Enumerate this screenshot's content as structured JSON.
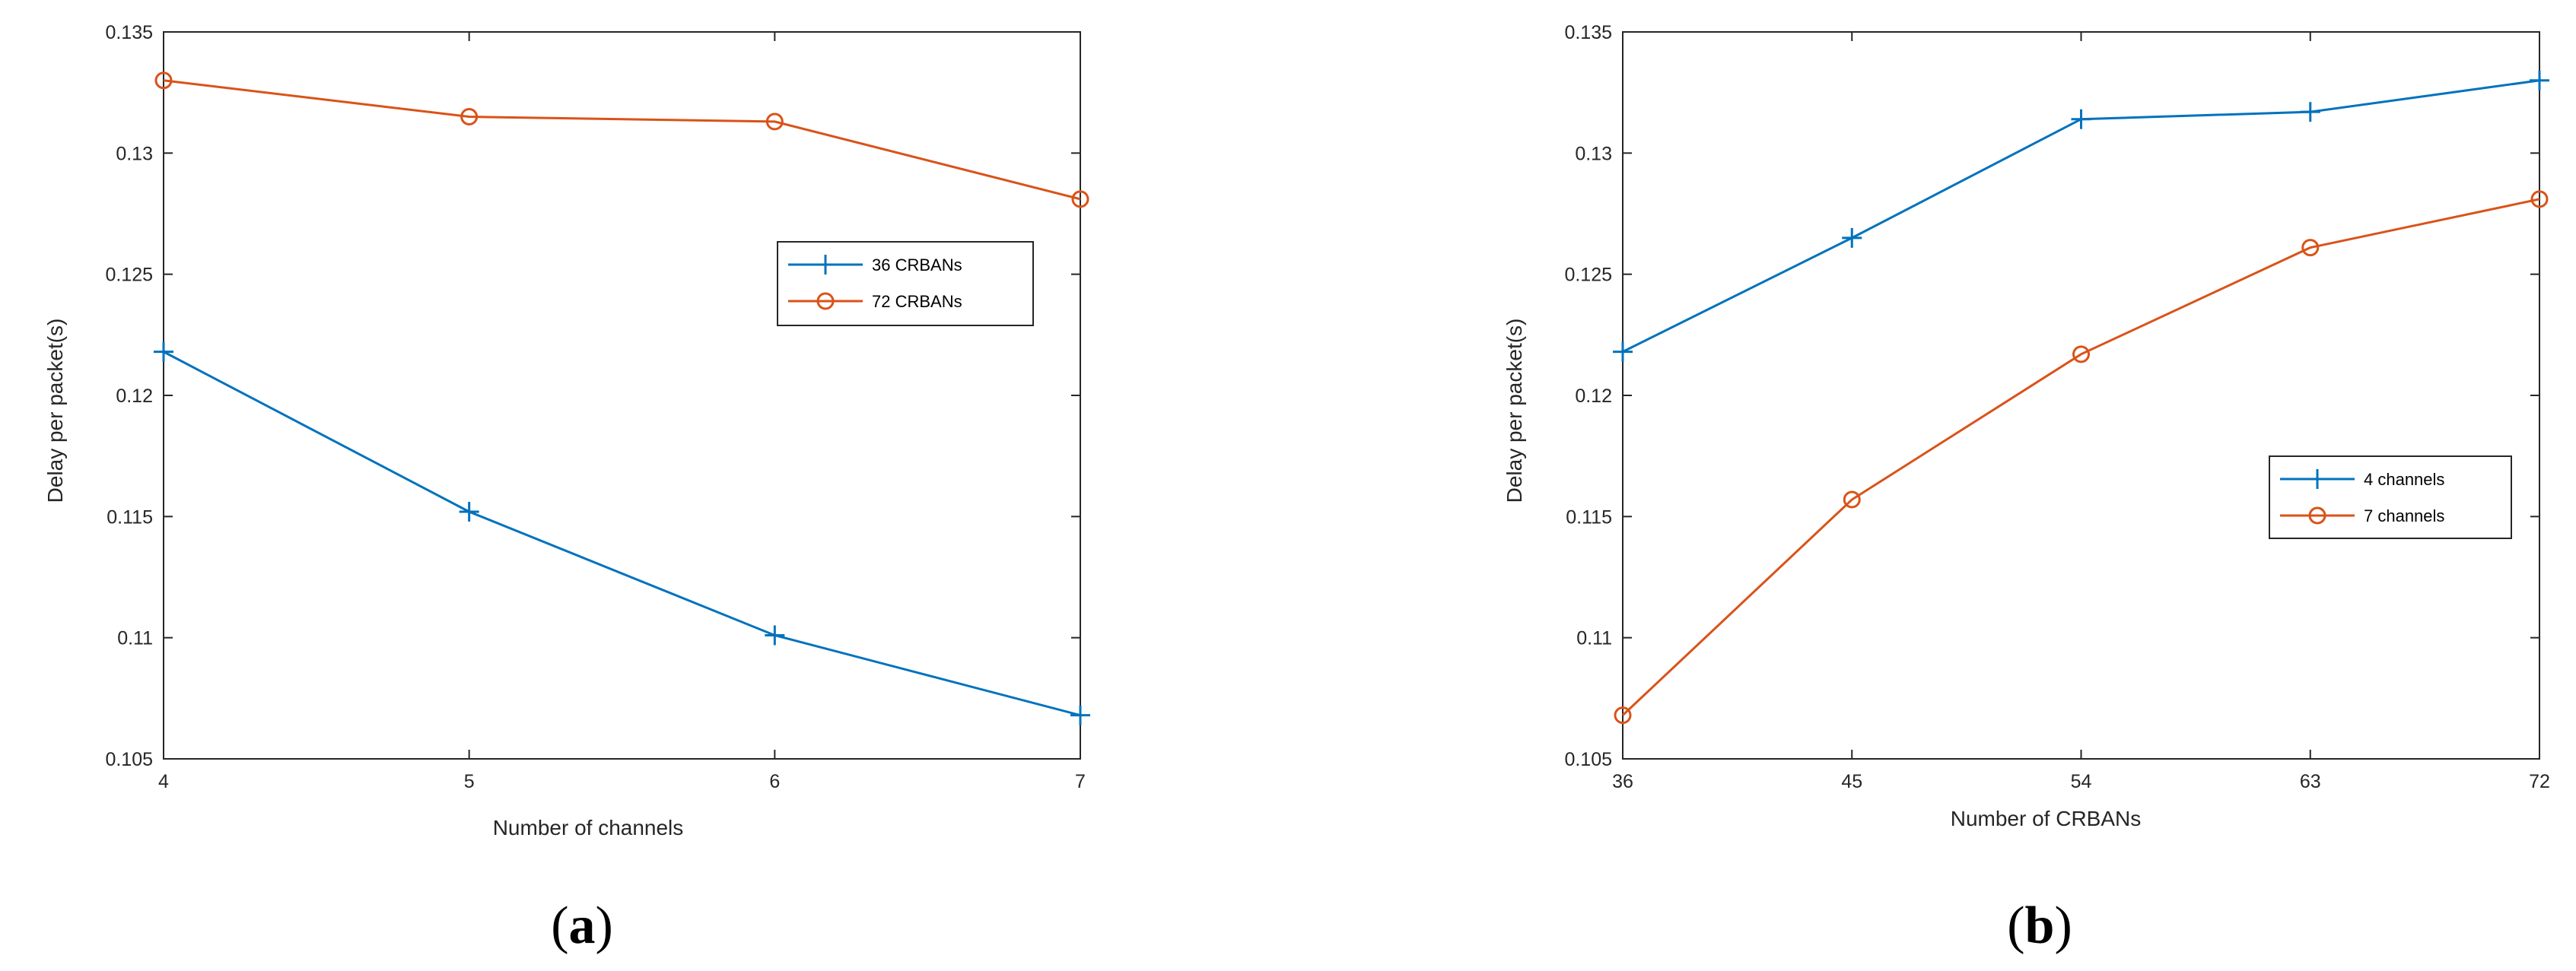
{
  "chart_data": [
    {
      "type": "line",
      "caption_letter": "a",
      "xlabel": "Number of channels",
      "ylabel": "Delay per packet(s)",
      "x": [
        4,
        5,
        6,
        7
      ],
      "xlim": [
        4,
        7
      ],
      "ylim": [
        0.105,
        0.135
      ],
      "xticks": [
        "4",
        "5",
        "6",
        "7"
      ],
      "yticks": [
        "0.105",
        "0.11",
        "0.115",
        "0.12",
        "0.125",
        "0.13",
        "0.135"
      ],
      "grid": false,
      "legend_position": "right-center",
      "series": [
        {
          "name": "36 CRBANs",
          "marker": "plus",
          "color": "#0072BD",
          "values": [
            0.1218,
            0.1152,
            0.1101,
            0.1068
          ]
        },
        {
          "name": "72 CRBANs",
          "marker": "circle",
          "color": "#D95319",
          "values": [
            0.133,
            0.1315,
            0.1313,
            0.1281
          ]
        }
      ]
    },
    {
      "type": "line",
      "caption_letter": "b",
      "xlabel": "Number of CRBANs",
      "ylabel": "Delay per packet(s)",
      "x": [
        36,
        45,
        54,
        63,
        72
      ],
      "xlim": [
        36,
        72
      ],
      "ylim": [
        0.105,
        0.135
      ],
      "xticks": [
        "36",
        "45",
        "54",
        "63",
        "72"
      ],
      "yticks": [
        "0.105",
        "0.11",
        "0.115",
        "0.12",
        "0.125",
        "0.13",
        "0.135"
      ],
      "grid": false,
      "legend_position": "right-center",
      "series": [
        {
          "name": "4 channels",
          "marker": "plus",
          "color": "#0072BD",
          "values": [
            0.1218,
            0.1265,
            0.1314,
            0.1317,
            0.133
          ]
        },
        {
          "name": "7 channels",
          "marker": "circle",
          "color": "#D95319",
          "values": [
            0.1068,
            0.1157,
            0.1217,
            0.1261,
            0.1281
          ]
        }
      ]
    }
  ]
}
